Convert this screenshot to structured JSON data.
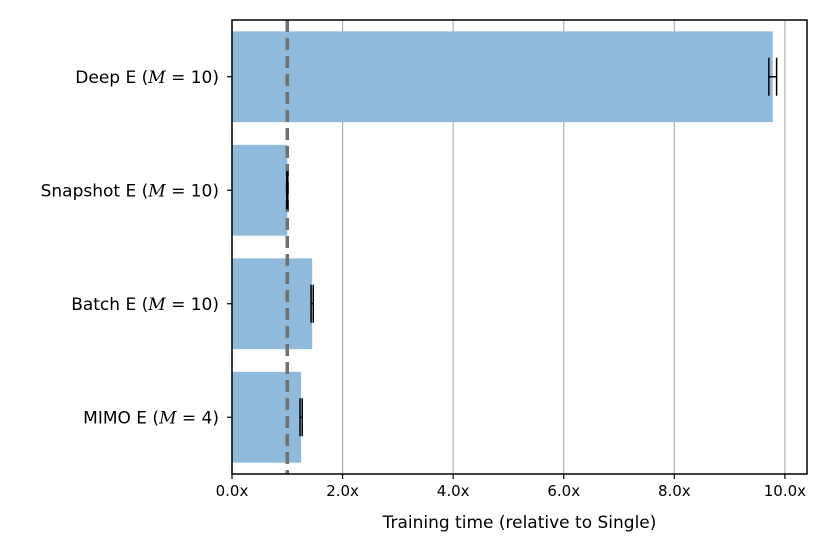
{
  "chart_data": {
    "type": "bar",
    "orientation": "horizontal",
    "categories": [
      {
        "name": "Deep E",
        "param": "M",
        "param_value": "10"
      },
      {
        "name": "Snapshot E",
        "param": "M",
        "param_value": "10"
      },
      {
        "name": "Batch E",
        "param": "M",
        "param_value": "10"
      },
      {
        "name": "MIMO E",
        "param": "M",
        "param_value": "4"
      }
    ],
    "values": [
      9.78,
      1.0,
      1.45,
      1.25
    ],
    "errors": [
      0.07,
      0.01,
      0.02,
      0.02
    ],
    "reference_line": 1.0,
    "xlabel": "Training time (relative to Single)",
    "xlim": [
      0,
      10.4
    ],
    "xticks": [
      0,
      2,
      4,
      6,
      8,
      10
    ],
    "xtick_labels": [
      "0.0x",
      "2.0x",
      "4.0x",
      "6.0x",
      "8.0x",
      "10.0x"
    ],
    "grid": "vertical",
    "colors": {
      "bar": "#8fbadb",
      "grid": "#b0b0b0",
      "reference": "#707070",
      "error": "#000000"
    }
  }
}
